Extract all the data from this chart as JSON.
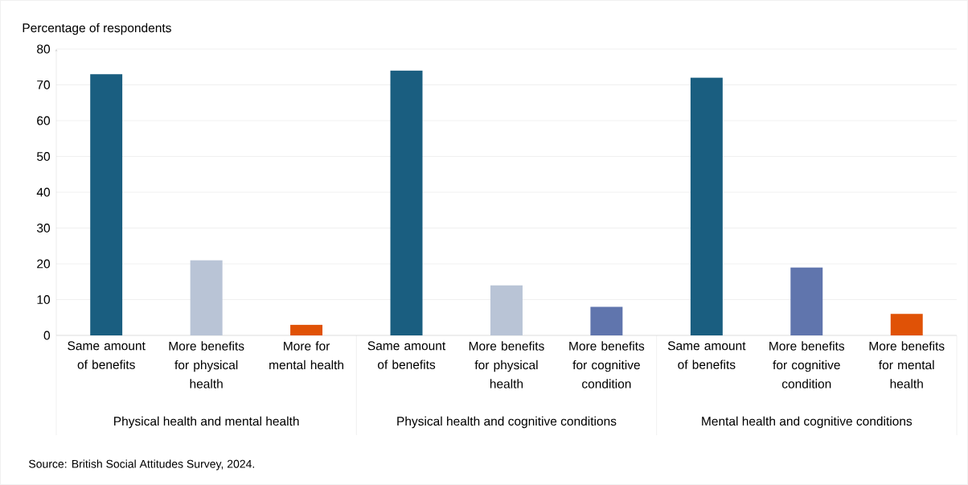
{
  "chart_data": {
    "type": "bar",
    "ylabel": "Percentage of respondents",
    "categories": [
      "Same amount of benefits",
      "More benefits for physical health",
      "More for mental health",
      "Same amount of benefits",
      "More benefits for physical health",
      "More benefits for cognitive condition",
      "Same amount of benefits",
      "More benefits for cognitive condition",
      "More benefits for mental health"
    ],
    "values": [
      73,
      21,
      3,
      74,
      14,
      8,
      72,
      19,
      6
    ],
    "colors": [
      "#1a5e80",
      "#b9c4d6",
      "#e05206",
      "#1a5e80",
      "#b9c4d6",
      "#6075ad",
      "#1a5e80",
      "#6075ad",
      "#e05206"
    ],
    "ylim": [
      0,
      80
    ],
    "yticks": [
      0,
      10,
      20,
      30,
      40,
      50,
      60,
      70,
      80
    ],
    "grid": "y",
    "annotations": [
      "Physical health and mental health",
      "Physical health and cognitive conditions",
      "Mental health and cognitive conditions",
      "Source: British Social Attitudes Survey, 2024."
    ]
  }
}
